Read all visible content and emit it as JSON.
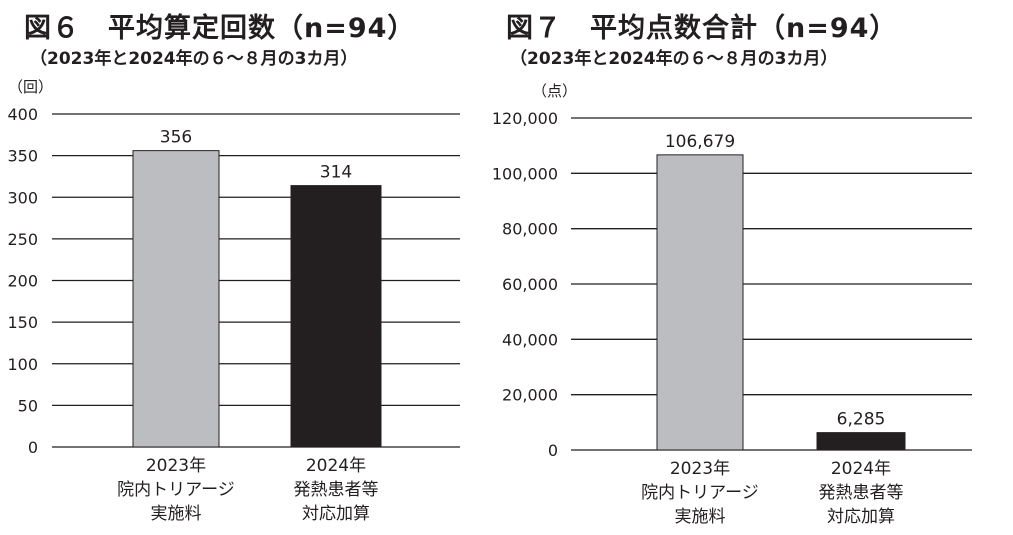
{
  "charts_meta": [
    {
      "title": "図６　平均算定回数（n=94）",
      "subtitle": "（2023年と2024年の６～８月の3カ月）",
      "unit": "（回）"
    },
    {
      "title": "図７　平均点数合計（n=94）",
      "subtitle": "（2023年と2024年の６～８月の3カ月）",
      "unit": "（点）"
    }
  ],
  "chart_data": [
    {
      "type": "bar",
      "title": "図６　平均算定回数（n=94）",
      "subtitle": "（2023年と2024年の６～８月の3カ月）",
      "ylabel": "（回）",
      "xlabel": "",
      "ylim": [
        0,
        400
      ],
      "yticks": [
        0,
        50,
        100,
        150,
        200,
        250,
        300,
        350,
        400
      ],
      "ytick_labels": [
        "0",
        "50",
        "100",
        "150",
        "200",
        "250",
        "300",
        "350",
        "400"
      ],
      "categories": [
        [
          "2023年",
          "院内トリアージ",
          "実施料"
        ],
        [
          "2024年",
          "発熱患者等",
          "対応加算"
        ]
      ],
      "values": [
        356,
        314
      ],
      "value_labels": [
        "356",
        "314"
      ],
      "colors": [
        "#bcbdc0",
        "#231f20"
      ],
      "grid": true
    },
    {
      "type": "bar",
      "title": "図７　平均点数合計（n=94）",
      "subtitle": "（2023年と2024年の６～８月の3カ月）",
      "ylabel": "（点）",
      "xlabel": "",
      "ylim": [
        0,
        120000
      ],
      "yticks": [
        0,
        20000,
        40000,
        60000,
        80000,
        100000,
        120000
      ],
      "ytick_labels": [
        "0",
        "20,000",
        "40,000",
        "60,000",
        "80,000",
        "100,000",
        "120,000"
      ],
      "categories": [
        [
          "2023年",
          "院内トリアージ",
          "実施料"
        ],
        [
          "2024年",
          "発熱患者等",
          "対応加算"
        ]
      ],
      "values": [
        106679,
        6285
      ],
      "value_labels": [
        "106,679",
        "6,285"
      ],
      "colors": [
        "#bcbdc0",
        "#231f20"
      ],
      "grid": true
    }
  ]
}
